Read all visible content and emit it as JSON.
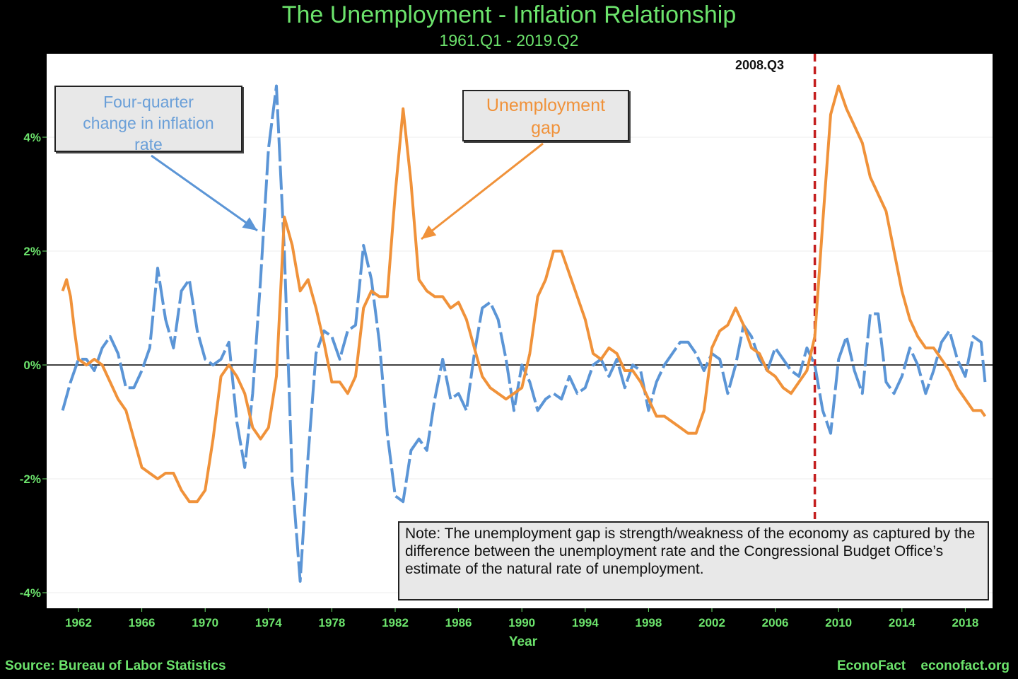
{
  "header": {
    "title": "The Unemployment - Inflation Relationship",
    "subtitle": "1961.Q1 - 2019.Q2"
  },
  "annotations": {
    "inflation_callout": [
      "Four-quarter",
      "change in inflation",
      "rate"
    ],
    "gap_callout": [
      "Unemployment",
      "gap"
    ],
    "marker_label": "2008.Q3",
    "note": "Note: The unemployment gap is strength/weakness of the economy as captured by the difference between the unemployment rate and the Congressional Budget Office’s estimate of the natural rate of unemployment."
  },
  "footer": {
    "source": "Source: Bureau of Labor Statistics",
    "brand": "EconoFact",
    "site": "econofact.org"
  },
  "colors": {
    "inflation": "#5b95d6",
    "gap": "#f0923a",
    "marker": "#c41e1e",
    "text": "#6ce36c"
  },
  "chart_data": {
    "type": "line",
    "title": "The Unemployment - Inflation Relationship",
    "subtitle": "1961.Q1 - 2019.Q2",
    "xlabel": "Year",
    "ylabel": "",
    "xlim": [
      1960.6,
      2019.6
    ],
    "ylim": [
      -4.2,
      5.4
    ],
    "grid": true,
    "legend": "none",
    "x_ticks": [
      "1962",
      "1966",
      "1970",
      "1974",
      "1978",
      "1982",
      "1986",
      "1990",
      "1994",
      "1998",
      "2002",
      "2006",
      "2010",
      "2014",
      "2018"
    ],
    "y_ticks": [
      "-4%",
      "-2%",
      "0%",
      "2%",
      "4%"
    ],
    "y_tick_values": [
      -4,
      -2,
      0,
      2,
      4
    ],
    "x_tick_values": [
      1962,
      1966,
      1970,
      1974,
      1978,
      1982,
      1986,
      1990,
      1994,
      1998,
      2002,
      2006,
      2010,
      2014,
      2018
    ],
    "marker": {
      "x": 2008.5,
      "label": "2008.Q3"
    },
    "series": [
      {
        "name": "Four-quarter change in inflation rate",
        "x": [
          1961.0,
          1961.5,
          1962.0,
          1962.5,
          1963.0,
          1963.5,
          1964.0,
          1964.5,
          1965.0,
          1965.5,
          1966.0,
          1966.5,
          1967.0,
          1967.5,
          1968.0,
          1968.5,
          1969.0,
          1969.5,
          1970.0,
          1970.5,
          1971.0,
          1971.5,
          1972.0,
          1972.5,
          1973.0,
          1973.5,
          1974.0,
          1974.5,
          1975.0,
          1975.5,
          1976.0,
          1976.5,
          1977.0,
          1977.5,
          1978.0,
          1978.5,
          1979.0,
          1979.5,
          1980.0,
          1980.5,
          1981.0,
          1981.5,
          1982.0,
          1982.5,
          1983.0,
          1983.5,
          1984.0,
          1984.5,
          1985.0,
          1985.5,
          1986.0,
          1986.5,
          1987.0,
          1987.5,
          1988.0,
          1988.5,
          1989.0,
          1989.5,
          1990.0,
          1990.5,
          1991.0,
          1991.5,
          1992.0,
          1992.5,
          1993.0,
          1993.5,
          1994.0,
          1994.5,
          1995.0,
          1995.5,
          1996.0,
          1996.5,
          1997.0,
          1997.5,
          1998.0,
          1998.5,
          1999.0,
          1999.5,
          2000.0,
          2000.5,
          2001.0,
          2001.5,
          2002.0,
          2002.5,
          2003.0,
          2003.5,
          2004.0,
          2004.5,
          2005.0,
          2005.5,
          2006.0,
          2006.5,
          2007.0,
          2007.5,
          2008.0,
          2008.5,
          2009.0,
          2009.5,
          2010.0,
          2010.5,
          2011.0,
          2011.5,
          2012.0,
          2012.5,
          2013.0,
          2013.5,
          2014.0,
          2014.5,
          2015.0,
          2015.5,
          2016.0,
          2016.5,
          2017.0,
          2017.5,
          2018.0,
          2018.5,
          2019.0,
          2019.25
        ],
        "values": [
          -0.8,
          -0.3,
          0.1,
          0.1,
          -0.1,
          0.3,
          0.5,
          0.2,
          -0.4,
          -0.4,
          -0.1,
          0.3,
          1.7,
          0.8,
          0.3,
          1.3,
          1.5,
          0.6,
          0.1,
          0.0,
          0.1,
          0.4,
          -1.0,
          -1.8,
          -0.5,
          1.5,
          3.8,
          4.9,
          2.0,
          -2.0,
          -3.8,
          -1.6,
          0.2,
          0.6,
          0.5,
          0.1,
          0.6,
          0.7,
          2.1,
          1.5,
          0.4,
          -1.2,
          -2.3,
          -2.4,
          -1.5,
          -1.3,
          -1.5,
          -0.6,
          0.1,
          -0.6,
          -0.5,
          -0.8,
          0.2,
          1.0,
          1.1,
          0.8,
          0.1,
          -0.8,
          0.0,
          -0.3,
          -0.8,
          -0.6,
          -0.5,
          -0.6,
          -0.2,
          -0.5,
          -0.4,
          0.0,
          0.1,
          -0.2,
          0.1,
          -0.4,
          0.0,
          -0.1,
          -0.8,
          -0.3,
          0.0,
          0.2,
          0.4,
          0.4,
          0.2,
          -0.1,
          0.2,
          0.1,
          -0.5,
          0.0,
          0.7,
          0.5,
          0.1,
          -0.1,
          0.3,
          0.1,
          -0.1,
          -0.2,
          0.3,
          0.0,
          -0.8,
          -1.2,
          0.1,
          0.5,
          -0.1,
          -0.5,
          0.9,
          0.9,
          -0.3,
          -0.5,
          -0.2,
          0.3,
          0.0,
          -0.5,
          -0.1,
          0.4,
          0.6,
          0.1,
          -0.2,
          0.5,
          0.4,
          -0.3
        ]
      },
      {
        "name": "Unemployment gap",
        "x": [
          1961.0,
          1961.25,
          1961.5,
          1961.75,
          1962.0,
          1962.5,
          1963.0,
          1963.5,
          1964.0,
          1964.5,
          1965.0,
          1965.5,
          1966.0,
          1966.5,
          1967.0,
          1967.5,
          1968.0,
          1968.5,
          1969.0,
          1969.5,
          1970.0,
          1970.5,
          1971.0,
          1971.5,
          1972.0,
          1972.5,
          1973.0,
          1973.5,
          1974.0,
          1974.5,
          1975.0,
          1975.5,
          1976.0,
          1976.5,
          1977.0,
          1977.5,
          1978.0,
          1978.5,
          1979.0,
          1979.5,
          1980.0,
          1980.5,
          1981.0,
          1981.5,
          1982.0,
          1982.5,
          1983.0,
          1983.5,
          1984.0,
          1984.5,
          1985.0,
          1985.5,
          1986.0,
          1986.5,
          1987.0,
          1987.5,
          1988.0,
          1988.5,
          1989.0,
          1989.5,
          1990.0,
          1990.5,
          1991.0,
          1991.5,
          1992.0,
          1992.5,
          1993.0,
          1993.5,
          1994.0,
          1994.5,
          1995.0,
          1995.5,
          1996.0,
          1996.5,
          1997.0,
          1997.5,
          1998.0,
          1998.5,
          1999.0,
          1999.5,
          2000.0,
          2000.5,
          2001.0,
          2001.5,
          2002.0,
          2002.5,
          2003.0,
          2003.5,
          2004.0,
          2004.5,
          2005.0,
          2005.5,
          2006.0,
          2006.5,
          2007.0,
          2007.5,
          2008.0,
          2008.5,
          2009.0,
          2009.5,
          2010.0,
          2010.5,
          2011.0,
          2011.5,
          2012.0,
          2012.5,
          2013.0,
          2013.5,
          2014.0,
          2014.5,
          2015.0,
          2015.5,
          2016.0,
          2016.5,
          2017.0,
          2017.5,
          2018.0,
          2018.5,
          2019.0,
          2019.25
        ],
        "values": [
          1.3,
          1.5,
          1.2,
          0.6,
          0.1,
          0.0,
          0.1,
          0.0,
          -0.3,
          -0.6,
          -0.8,
          -1.3,
          -1.8,
          -1.9,
          -2.0,
          -1.9,
          -1.9,
          -2.2,
          -2.4,
          -2.4,
          -2.2,
          -1.3,
          -0.2,
          0.0,
          -0.2,
          -0.5,
          -1.1,
          -1.3,
          -1.1,
          -0.2,
          2.6,
          2.1,
          1.3,
          1.5,
          1.0,
          0.4,
          -0.3,
          -0.3,
          -0.5,
          -0.2,
          1.0,
          1.3,
          1.2,
          1.2,
          3.0,
          4.5,
          3.2,
          1.5,
          1.3,
          1.2,
          1.2,
          1.0,
          1.1,
          0.8,
          0.3,
          -0.2,
          -0.4,
          -0.5,
          -0.6,
          -0.5,
          -0.4,
          0.2,
          1.2,
          1.5,
          2.0,
          2.0,
          1.6,
          1.2,
          0.8,
          0.2,
          0.1,
          0.3,
          0.2,
          -0.1,
          -0.1,
          -0.3,
          -0.6,
          -0.9,
          -0.9,
          -1.0,
          -1.1,
          -1.2,
          -1.2,
          -0.8,
          0.3,
          0.6,
          0.7,
          1.0,
          0.7,
          0.3,
          0.2,
          -0.1,
          -0.2,
          -0.4,
          -0.5,
          -0.3,
          -0.1,
          0.5,
          2.5,
          4.4,
          4.9,
          4.5,
          4.2,
          3.9,
          3.3,
          3.0,
          2.7,
          2.0,
          1.3,
          0.8,
          0.5,
          0.3,
          0.3,
          0.1,
          -0.1,
          -0.4,
          -0.6,
          -0.8,
          -0.8,
          -0.9
        ]
      }
    ]
  }
}
